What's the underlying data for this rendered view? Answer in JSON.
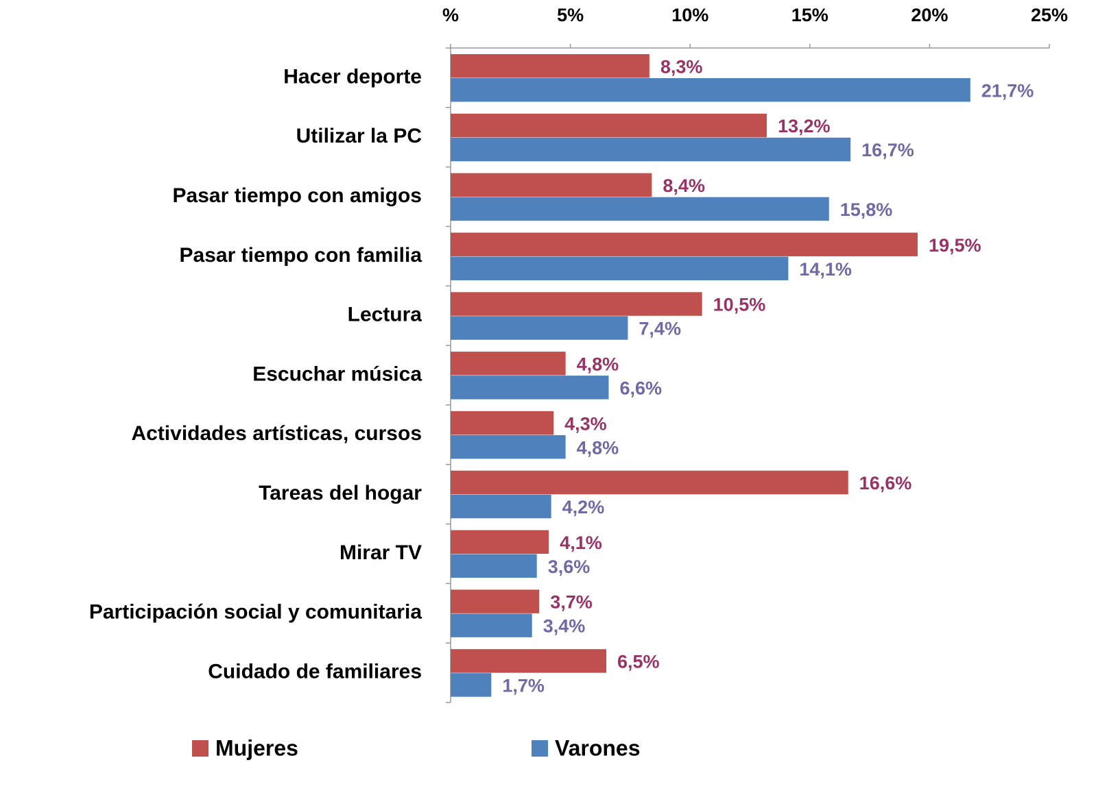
{
  "chart_data": {
    "type": "bar",
    "orientation": "horizontal",
    "categories": [
      "Hacer deporte",
      "Utilizar la PC",
      "Pasar tiempo con amigos",
      "Pasar tiempo con familia",
      "Lectura",
      "Escuchar música",
      "Actividades artísticas, cursos",
      "Tareas del hogar",
      "Mirar TV",
      "Participación social y comunitaria",
      "Cuidado de familiares"
    ],
    "series": [
      {
        "name": "Mujeres",
        "color": "#c0504d",
        "label_color": "#993366",
        "values": [
          8.3,
          13.2,
          8.4,
          19.5,
          10.5,
          4.8,
          4.3,
          16.6,
          4.1,
          3.7,
          6.5
        ],
        "value_labels": [
          "8,3%",
          "13,2%",
          "8,4%",
          "19,5%",
          "10,5%",
          "4,8%",
          "4,3%",
          "16,6%",
          "4,1%",
          "3,7%",
          "6,5%"
        ]
      },
      {
        "name": "Varones",
        "color": "#4f81bd",
        "label_color": "#6e6aa6",
        "values": [
          21.7,
          16.7,
          15.8,
          14.1,
          7.4,
          6.6,
          4.8,
          4.2,
          3.6,
          3.4,
          1.7
        ],
        "value_labels": [
          "21,7%",
          "16,7%",
          "15,8%",
          "14,1%",
          "7,4%",
          "6,6%",
          "4,8%",
          "4,2%",
          "3,6%",
          "3,4%",
          "1,7%"
        ]
      }
    ],
    "xlim": [
      0,
      25
    ],
    "xticks": [
      {
        "value": 0,
        "label": "%"
      },
      {
        "value": 5,
        "label": "5%"
      },
      {
        "value": 10,
        "label": "10%"
      },
      {
        "value": 15,
        "label": "15%"
      },
      {
        "value": 20,
        "label": "20%"
      },
      {
        "value": 25,
        "label": "25%"
      }
    ],
    "x_axis_position": "top",
    "legend": "bottom",
    "grid": false
  }
}
